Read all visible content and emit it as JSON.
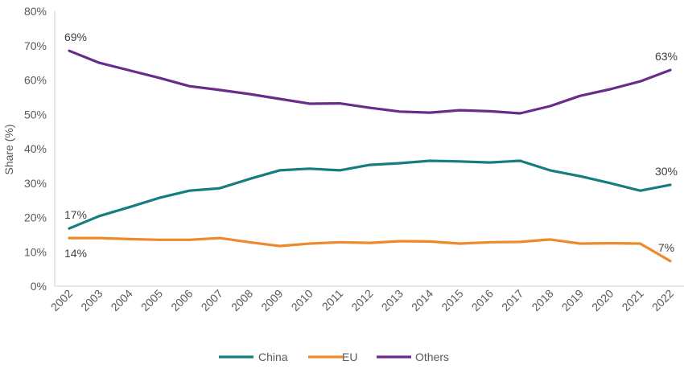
{
  "chart_data": {
    "type": "line",
    "title": "",
    "xlabel": "",
    "ylabel": "Share (%)",
    "ylim": [
      0,
      80
    ],
    "yticks": [
      0,
      10,
      20,
      30,
      40,
      50,
      60,
      70,
      80
    ],
    "ytick_labels": [
      "0%",
      "10%",
      "20%",
      "30%",
      "40%",
      "50%",
      "60%",
      "70%",
      "80%"
    ],
    "grid": false,
    "legend_position": "bottom",
    "x": [
      "2002",
      "2003",
      "2004",
      "2005",
      "2006",
      "2007",
      "2008",
      "2009",
      "2010",
      "2011",
      "2012",
      "2013",
      "2014",
      "2015",
      "2016",
      "2017",
      "2018",
      "2019",
      "2020",
      "2021",
      "2022"
    ],
    "series": [
      {
        "name": "China",
        "color": "#167D7F",
        "values": [
          16.8,
          20.4,
          23.0,
          25.7,
          27.8,
          28.5,
          31.2,
          33.7,
          34.2,
          33.7,
          35.3,
          35.8,
          36.5,
          36.3,
          36.0,
          36.5,
          33.7,
          32.0,
          30.0,
          27.8,
          29.5
        ],
        "labels": [
          {
            "index": 0,
            "text": "17%",
            "position": "above"
          },
          {
            "index": 20,
            "text": "30%",
            "position": "above"
          }
        ]
      },
      {
        "name": "EU",
        "color": "#EE8A2B",
        "values": [
          14.0,
          14.0,
          13.7,
          13.5,
          13.5,
          14.0,
          12.8,
          11.7,
          12.4,
          12.8,
          12.6,
          13.1,
          13.0,
          12.4,
          12.8,
          12.9,
          13.6,
          12.4,
          12.5,
          12.4,
          7.3
        ],
        "labels": [
          {
            "index": 0,
            "text": "14%",
            "position": "below"
          },
          {
            "index": 20,
            "text": "7%",
            "position": "above"
          }
        ]
      },
      {
        "name": "Others",
        "color": "#6A2C8A",
        "values": [
          68.5,
          65.0,
          62.8,
          60.6,
          58.2,
          57.1,
          55.9,
          54.5,
          53.1,
          53.2,
          51.9,
          50.8,
          50.5,
          51.2,
          50.9,
          50.3,
          52.4,
          55.4,
          57.3,
          59.6,
          62.9
        ],
        "labels": [
          {
            "index": 0,
            "text": "69%",
            "position": "above"
          },
          {
            "index": 20,
            "text": "63%",
            "position": "above"
          }
        ]
      }
    ]
  }
}
